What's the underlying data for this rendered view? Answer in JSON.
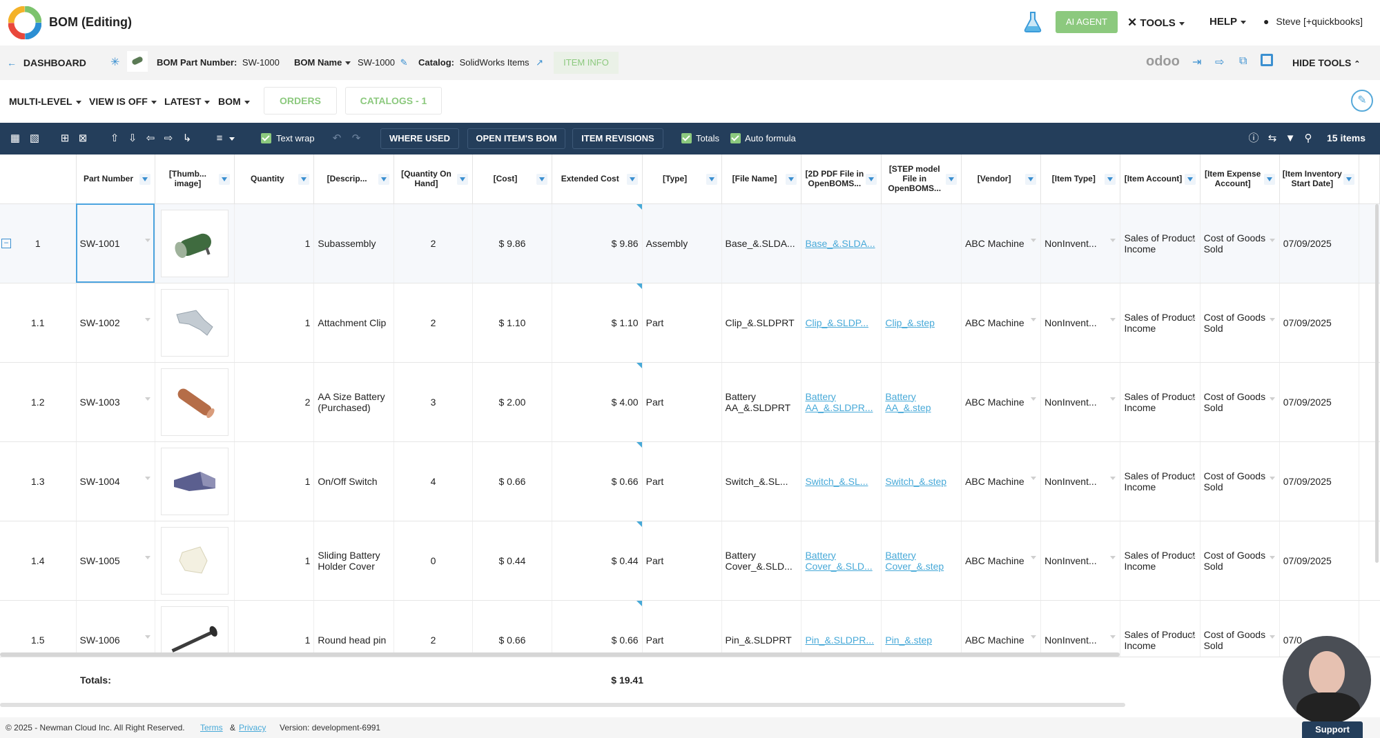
{
  "header": {
    "title": "BOM (Editing)",
    "ai_agent": "AI AGENT",
    "tools": "TOOLS",
    "help": "HELP",
    "user": "Steve [+quickbooks]"
  },
  "subheader": {
    "dashboard": "DASHBOARD",
    "part_number_label": "BOM Part Number:",
    "part_number_value": "SW-1000",
    "bom_name_label": "BOM Name",
    "bom_name_value": "SW-1000",
    "catalog_label": "Catalog:",
    "catalog_value": "SolidWorks Items",
    "item_info": "ITEM INFO",
    "odoo": "odoo",
    "hide_tools": "HIDE TOOLS"
  },
  "viewbar": {
    "multi_level": "MULTI-LEVEL",
    "view": "VIEW IS OFF",
    "latest": "LATEST",
    "bom": "BOM",
    "orders": "ORDERS",
    "catalogs": "CATALOGS - 1"
  },
  "toolbar": {
    "text_wrap": "Text wrap",
    "where_used": "WHERE USED",
    "open_bom": "OPEN ITEM'S BOM",
    "item_revisions": "ITEM REVISIONS",
    "totals": "Totals",
    "auto_formula": "Auto formula",
    "count": "15 items"
  },
  "columns": [
    "Part Number",
    "[Thumb... image]",
    "Quantity",
    "[Descrip...",
    "[Quantity On Hand]",
    "[Cost]",
    "Extended Cost",
    "[Type]",
    "[File Name]",
    "[2D PDF File in OpenBOMS...",
    "[STEP model File in OpenBOMS...",
    "[Vendor]",
    "[Item Type]",
    "[Item Account]",
    "[Item Expense Account]",
    "[Item Inventory Start Date]"
  ],
  "rows": [
    {
      "level": "1",
      "part": "SW-1001",
      "qty": "1",
      "desc": "Subassembly",
      "onhand": "2",
      "cost": "$ 9.86",
      "ext": "$ 9.86",
      "type": "Assembly",
      "file": "Base_&.SLDA...",
      "pdf": "Base_&.SLDA...",
      "step": "",
      "vendor": "ABC Machine",
      "itype": "NonInvent...",
      "account": "Sales of Product Income",
      "expense": "Cost of Goods Sold",
      "date": "07/09/2025"
    },
    {
      "level": "1.1",
      "part": "SW-1002",
      "qty": "1",
      "desc": "Attachment Clip",
      "onhand": "2",
      "cost": "$ 1.10",
      "ext": "$ 1.10",
      "type": "Part",
      "file": "Clip_&.SLDPRT",
      "pdf": "Clip_&.SLDP...",
      "step": "Clip_&.step",
      "vendor": "ABC Machine",
      "itype": "NonInvent...",
      "account": "Sales of Product Income",
      "expense": "Cost of Goods Sold",
      "date": "07/09/2025"
    },
    {
      "level": "1.2",
      "part": "SW-1003",
      "qty": "2",
      "desc": "AA Size Battery (Purchased)",
      "onhand": "3",
      "cost": "$ 2.00",
      "ext": "$ 4.00",
      "type": "Part",
      "file": "Battery AA_&.SLDPRT",
      "pdf": "Battery AA_&.SLDPR...",
      "step": "Battery AA_&.step",
      "vendor": "ABC Machine",
      "itype": "NonInvent...",
      "account": "Sales of Product Income",
      "expense": "Cost of Goods Sold",
      "date": "07/09/2025"
    },
    {
      "level": "1.3",
      "part": "SW-1004",
      "qty": "1",
      "desc": "On/Off Switch",
      "onhand": "4",
      "cost": "$ 0.66",
      "ext": "$ 0.66",
      "type": "Part",
      "file": "Switch_&.SL...",
      "pdf": "Switch_&.SL...",
      "step": "Switch_&.step",
      "vendor": "ABC Machine",
      "itype": "NonInvent...",
      "account": "Sales of Product Income",
      "expense": "Cost of Goods Sold",
      "date": "07/09/2025"
    },
    {
      "level": "1.4",
      "part": "SW-1005",
      "qty": "1",
      "desc": "Sliding Battery Holder Cover",
      "onhand": "0",
      "cost": "$ 0.44",
      "ext": "$ 0.44",
      "type": "Part",
      "file": "Battery Cover_&.SLD...",
      "pdf": "Battery Cover_&.SLD...",
      "step": "Battery Cover_&.step",
      "vendor": "ABC Machine",
      "itype": "NonInvent...",
      "account": "Sales of Product Income",
      "expense": "Cost of Goods Sold",
      "date": "07/09/2025"
    },
    {
      "level": "1.5",
      "part": "SW-1006",
      "qty": "1",
      "desc": "Round head pin",
      "onhand": "2",
      "cost": "$ 0.66",
      "ext": "$ 0.66",
      "type": "Part",
      "file": "Pin_&.SLDPRT",
      "pdf": "Pin_&.SLDPR...",
      "step": "Pin_&.step",
      "vendor": "ABC Machine",
      "itype": "NonInvent...",
      "account": "Sales of Product Income",
      "expense": "Cost of Goods Sold",
      "date": "07/0"
    }
  ],
  "totals": {
    "label": "Totals:",
    "value": "$ 19.41"
  },
  "footer": {
    "copyright": "© 2025 - Newman Cloud Inc. All Right Reserved.",
    "terms": "Terms",
    "amp": "&",
    "privacy": "Privacy",
    "version": "Version: development-6991",
    "support": "Support"
  },
  "colors": {
    "navy": "#243e5b",
    "green": "#8cc97e",
    "link": "#47a9d8"
  }
}
